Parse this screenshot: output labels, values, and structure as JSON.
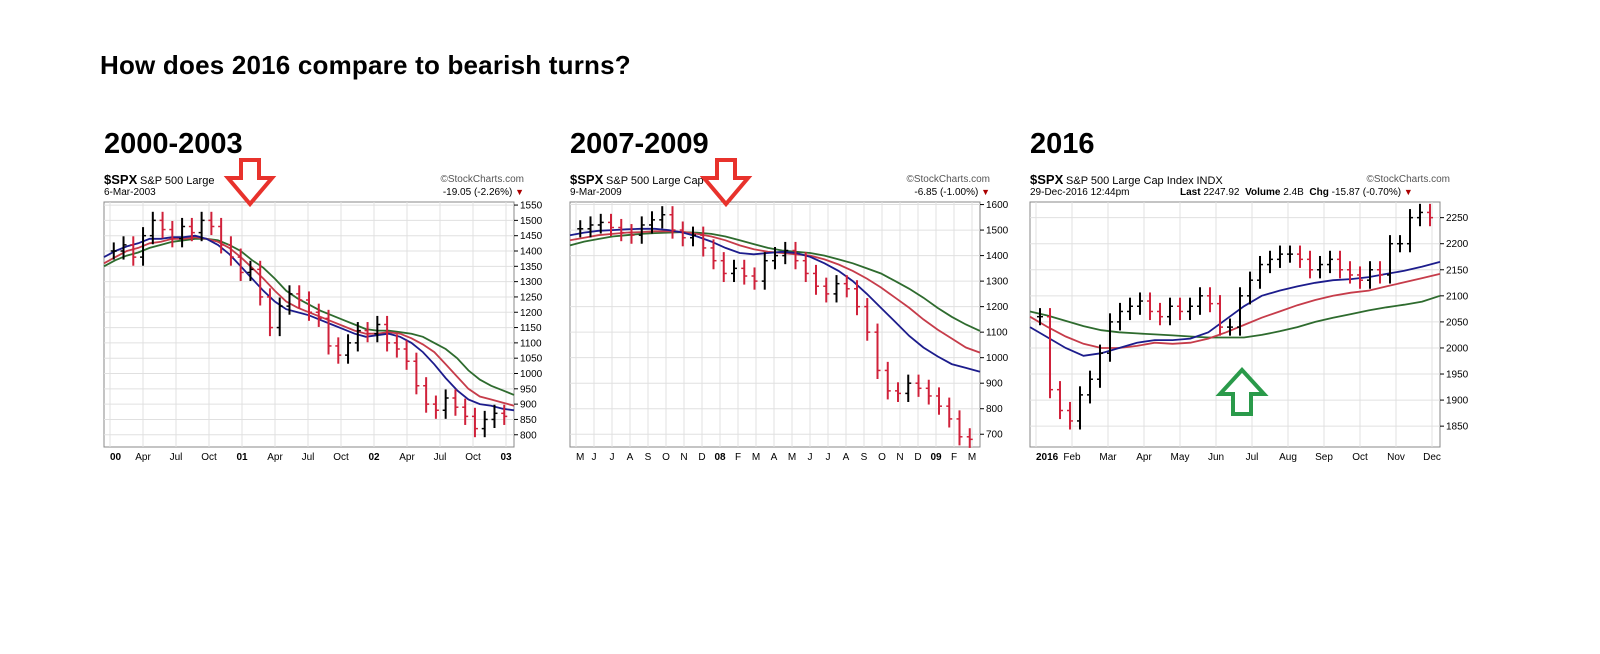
{
  "page": {
    "title": "How does 2016 compare to bearish turns?"
  },
  "panels": [
    {
      "title": "2000-2003",
      "symbol": "$SPX",
      "name": "S&P 500 Large",
      "date": "6-Mar-2003",
      "brand": "©StockCharts.com",
      "change": "-19.05 (-2.26%)"
    },
    {
      "title": "2007-2009",
      "symbol": "$SPX",
      "name": "S&P 500 Large Cap",
      "date": "9-Mar-2009",
      "brand": "©StockCharts.com",
      "change": "-6.85 (-1.00%)"
    },
    {
      "title": "2016",
      "symbol": "$SPX",
      "name": "S&P 500 Large Cap Index",
      "exch": "INDX",
      "date": "29-Dec-2016 12:44pm",
      "brand": "©StockCharts.com",
      "last_label": "Last",
      "last": "2247.92",
      "volume_label": "Volume",
      "volume": "2.4B",
      "chg_label": "Chg",
      "change": "-15.87 (-0.70%)"
    }
  ],
  "colors": {
    "up": "#000000",
    "down": "#d0213a",
    "ma_blue": "#1c1c8c",
    "ma_red": "#c63c4a",
    "ma_green": "#2e6b2e",
    "arrow_red": "#e8322c",
    "arrow_green": "#2a9a4a",
    "grid": "#e0e0e0"
  },
  "chart_data": [
    {
      "type": "ohlc",
      "title": "2000-2003",
      "ylim": [
        760,
        1560
      ],
      "y_ticks": [
        800,
        850,
        900,
        950,
        1000,
        1050,
        1100,
        1150,
        1200,
        1250,
        1300,
        1350,
        1400,
        1450,
        1500,
        1550
      ],
      "x_labels": [
        {
          "t": "00",
          "bold": true
        },
        {
          "t": "Apr"
        },
        {
          "t": "Jul"
        },
        {
          "t": "Oct"
        },
        {
          "t": "01",
          "bold": true
        },
        {
          "t": "Apr"
        },
        {
          "t": "Jul"
        },
        {
          "t": "Oct"
        },
        {
          "t": "02",
          "bold": true
        },
        {
          "t": "Apr"
        },
        {
          "t": "Jul"
        },
        {
          "t": "Oct"
        },
        {
          "t": "03",
          "bold": true
        }
      ],
      "close": [
        1400,
        1420,
        1380,
        1450,
        1500,
        1470,
        1440,
        1480,
        1460,
        1500,
        1480,
        1420,
        1380,
        1330,
        1340,
        1250,
        1150,
        1220,
        1260,
        1240,
        1200,
        1180,
        1090,
        1060,
        1100,
        1140,
        1130,
        1160,
        1100,
        1080,
        1040,
        960,
        900,
        880,
        920,
        890,
        860,
        820,
        850,
        870,
        860
      ],
      "ma_green": [
        1350,
        1370,
        1385,
        1395,
        1410,
        1420,
        1430,
        1435,
        1440,
        1440,
        1435,
        1420,
        1400,
        1370,
        1345,
        1310,
        1270,
        1245,
        1225,
        1205,
        1190,
        1175,
        1160,
        1145,
        1140,
        1140,
        1135,
        1130,
        1120,
        1100,
        1080,
        1050,
        1010,
        980,
        960,
        945,
        930
      ],
      "ma_red": [
        1360,
        1380,
        1400,
        1410,
        1425,
        1430,
        1440,
        1440,
        1445,
        1440,
        1430,
        1410,
        1380,
        1345,
        1310,
        1270,
        1235,
        1215,
        1200,
        1185,
        1170,
        1155,
        1140,
        1130,
        1130,
        1135,
        1130,
        1115,
        1095,
        1070,
        1030,
        990,
        950,
        925,
        915,
        905,
        895
      ],
      "ma_blue": [
        1380,
        1400,
        1415,
        1425,
        1440,
        1440,
        1445,
        1445,
        1450,
        1440,
        1420,
        1390,
        1350,
        1310,
        1270,
        1235,
        1210,
        1200,
        1190,
        1175,
        1160,
        1145,
        1130,
        1120,
        1125,
        1130,
        1120,
        1100,
        1070,
        1030,
        985,
        945,
        915,
        900,
        895,
        885,
        880
      ]
    },
    {
      "type": "ohlc",
      "title": "2007-2009",
      "ylim": [
        650,
        1610
      ],
      "y_ticks": [
        700,
        800,
        900,
        1000,
        1100,
        1200,
        1300,
        1400,
        1500,
        1600
      ],
      "x_labels": [
        {
          "t": "M"
        },
        {
          "t": "J"
        },
        {
          "t": "J"
        },
        {
          "t": "A"
        },
        {
          "t": "S"
        },
        {
          "t": "O"
        },
        {
          "t": "N"
        },
        {
          "t": "D"
        },
        {
          "t": "08",
          "bold": true
        },
        {
          "t": "F"
        },
        {
          "t": "M"
        },
        {
          "t": "A"
        },
        {
          "t": "M"
        },
        {
          "t": "J"
        },
        {
          "t": "J"
        },
        {
          "t": "A"
        },
        {
          "t": "S"
        },
        {
          "t": "O"
        },
        {
          "t": "N"
        },
        {
          "t": "D"
        },
        {
          "t": "09",
          "bold": true
        },
        {
          "t": "F"
        },
        {
          "t": "M"
        }
      ],
      "close": [
        1505,
        1520,
        1530,
        1510,
        1490,
        1480,
        1520,
        1540,
        1560,
        1500,
        1470,
        1480,
        1430,
        1380,
        1330,
        1350,
        1320,
        1300,
        1380,
        1400,
        1420,
        1380,
        1330,
        1280,
        1250,
        1290,
        1270,
        1200,
        1100,
        950,
        870,
        860,
        900,
        880,
        850,
        810,
        760,
        690,
        680
      ],
      "ma_green": [
        1440,
        1455,
        1465,
        1475,
        1480,
        1485,
        1488,
        1490,
        1492,
        1490,
        1485,
        1475,
        1460,
        1445,
        1430,
        1420,
        1415,
        1410,
        1400,
        1385,
        1370,
        1350,
        1330,
        1300,
        1270,
        1235,
        1195,
        1160,
        1130,
        1105
      ],
      "ma_red": [
        1460,
        1470,
        1480,
        1485,
        1490,
        1492,
        1495,
        1495,
        1493,
        1485,
        1475,
        1460,
        1440,
        1425,
        1415,
        1410,
        1405,
        1400,
        1385,
        1365,
        1340,
        1310,
        1275,
        1235,
        1195,
        1150,
        1110,
        1075,
        1040,
        1020
      ],
      "ma_blue": [
        1480,
        1490,
        1497,
        1500,
        1503,
        1505,
        1505,
        1500,
        1490,
        1475,
        1455,
        1430,
        1410,
        1405,
        1410,
        1415,
        1410,
        1395,
        1370,
        1340,
        1300,
        1250,
        1195,
        1140,
        1085,
        1040,
        1005,
        975,
        960,
        945
      ]
    },
    {
      "type": "ohlc",
      "title": "2016",
      "ylim": [
        1810,
        2280
      ],
      "y_ticks": [
        1850,
        1900,
        1950,
        2000,
        2050,
        2100,
        2150,
        2200,
        2250
      ],
      "x_labels": [
        {
          "t": "2016",
          "bold": true
        },
        {
          "t": "Feb"
        },
        {
          "t": "Mar"
        },
        {
          "t": "Apr"
        },
        {
          "t": "May"
        },
        {
          "t": "Jun"
        },
        {
          "t": "Jul"
        },
        {
          "t": "Aug"
        },
        {
          "t": "Sep"
        },
        {
          "t": "Oct"
        },
        {
          "t": "Nov"
        },
        {
          "t": "Dec"
        }
      ],
      "close": [
        2060,
        1920,
        1880,
        1860,
        1910,
        1940,
        1990,
        2050,
        2070,
        2080,
        2090,
        2070,
        2060,
        2080,
        2070,
        2080,
        2100,
        2085,
        2040,
        2040,
        2100,
        2130,
        2160,
        2170,
        2180,
        2180,
        2170,
        2150,
        2160,
        2170,
        2150,
        2140,
        2130,
        2150,
        2140,
        2200,
        2200,
        2250,
        2260,
        2250
      ],
      "ma_green": [
        2070,
        2062,
        2052,
        2042,
        2034,
        2030,
        2028,
        2026,
        2024,
        2022,
        2020,
        2020,
        2020,
        2025,
        2032,
        2040,
        2050,
        2058,
        2065,
        2072,
        2078,
        2083,
        2089,
        2100
      ],
      "ma_red": [
        2060,
        2040,
        2022,
        2008,
        2000,
        2000,
        2004,
        2010,
        2008,
        2010,
        2018,
        2030,
        2044,
        2058,
        2070,
        2082,
        2092,
        2100,
        2106,
        2110,
        2118,
        2126,
        2134,
        2142
      ],
      "ma_blue": [
        2040,
        2020,
        2000,
        1985,
        1990,
        2000,
        2010,
        2015,
        2015,
        2018,
        2030,
        2055,
        2080,
        2100,
        2110,
        2118,
        2125,
        2130,
        2132,
        2136,
        2142,
        2148,
        2156,
        2165
      ]
    }
  ]
}
